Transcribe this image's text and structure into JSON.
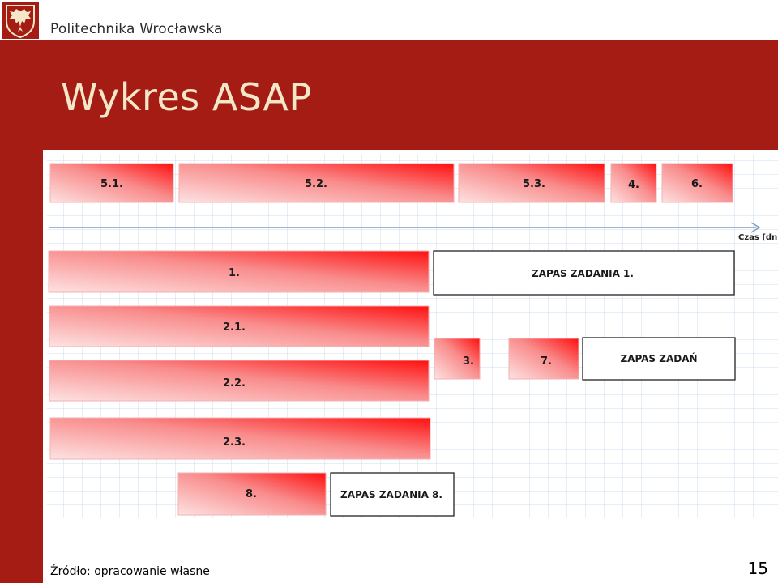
{
  "header": {
    "university": "Politechnika Wrocławska",
    "logo_icon": "eagle-shield-icon"
  },
  "slide": {
    "title": "Wykres ASAP",
    "source": "Źródło: opracowanie własne",
    "page_number": "15"
  },
  "colors": {
    "brand_red": "#a51c14",
    "title_text": "#f4e7c8",
    "bar_red": "#ff1a1a",
    "bar_light": "#fde2e2",
    "grid": "#c9d8ea",
    "axis": "#7f9bc7"
  },
  "diagram": {
    "axis_label": "Czas [dni]",
    "top_tasks": [
      "5.1.",
      "5.2.",
      "5.3.",
      "4.",
      "6."
    ],
    "tasks": [
      "1.",
      "2.1.",
      "2.2.",
      "2.3.",
      "3.",
      "7.",
      "8."
    ],
    "slacks": [
      "ZAPAS ZADANIA 1.",
      "ZAPAS ZADAŃ",
      "ZAPAS ZADANIA 8."
    ]
  }
}
